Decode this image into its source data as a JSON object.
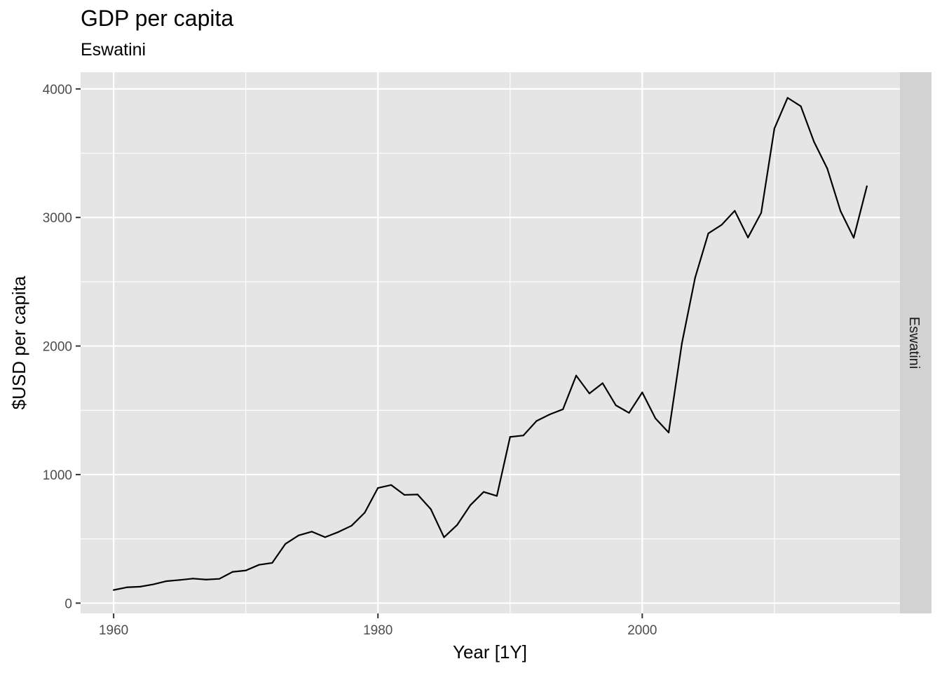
{
  "chart_data": {
    "type": "line",
    "title": "GDP per capita",
    "subtitle": "Eswatini",
    "xlabel": "Year [1Y]",
    "ylabel": "$USD per capita",
    "facet_label": "Eswatini",
    "xlim": [
      1957.5,
      2019.5
    ],
    "ylim": [
      -80,
      4130
    ],
    "x_ticks": [
      1960,
      1980,
      2000
    ],
    "x_minor_ticks": [
      1970,
      1990,
      2010
    ],
    "y_ticks": [
      0,
      1000,
      2000,
      3000,
      4000
    ],
    "y_minor_ticks": [
      500,
      1500,
      2500,
      3500
    ],
    "grid": true,
    "legend": "none",
    "colors": {
      "panel": "#e5e5e5",
      "grid": "#ffffff",
      "line": "#000000",
      "strip": "#d2d2d2"
    },
    "series": [
      {
        "x": [
          1960,
          1961,
          1962,
          1963,
          1964,
          1965,
          1966,
          1967,
          1968,
          1969,
          1970,
          1971,
          1972,
          1973,
          1974,
          1975,
          1976,
          1977,
          1978,
          1979,
          1980,
          1981,
          1982,
          1983,
          1984,
          1985,
          1986,
          1987,
          1988,
          1989,
          1990,
          1991,
          1992,
          1993,
          1994,
          1995,
          1996,
          1997,
          1998,
          1999,
          2000,
          2001,
          2002,
          2003,
          2004,
          2005,
          2006,
          2007,
          2008,
          2009,
          2010,
          2011,
          2012,
          2013,
          2014,
          2015,
          2016,
          2017
        ],
        "values": [
          102,
          123,
          128,
          146,
          171,
          180,
          191,
          183,
          189,
          243,
          254,
          298,
          313,
          461,
          527,
          556,
          513,
          553,
          602,
          704,
          896,
          919,
          842,
          845,
          731,
          512,
          609,
          763,
          865,
          834,
          1293,
          1304,
          1417,
          1468,
          1508,
          1770,
          1631,
          1711,
          1539,
          1480,
          1639,
          1437,
          1327,
          2021,
          2531,
          2876,
          2942,
          3052,
          2844,
          3036,
          3692,
          3931,
          3865,
          3588,
          3381,
          3051,
          2842,
          3243
        ]
      }
    ]
  }
}
